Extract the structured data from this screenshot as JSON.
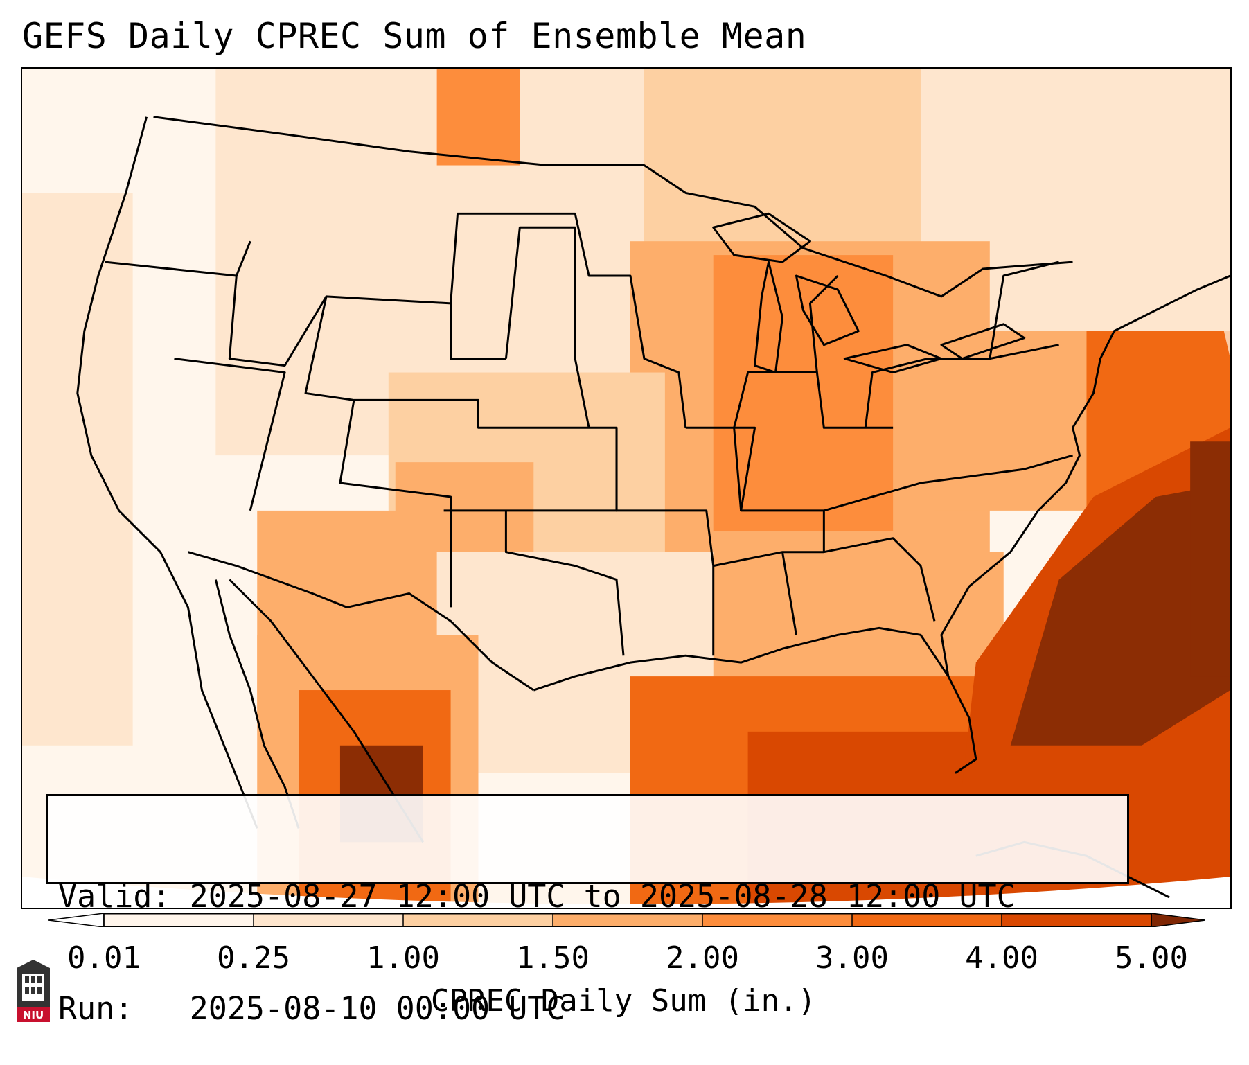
{
  "title": "GEFS Daily CPREC Sum of Ensemble Mean",
  "info": {
    "valid": "Valid: 2025-08-27 12:00 UTC to 2025-08-28 12:00 UTC",
    "run": "Run:   2025-08-10 00:00 UTC"
  },
  "colorbar": {
    "label": "CPREC Daily Sum (in.)",
    "ticks": [
      "0.01",
      "0.25",
      "1.00",
      "1.50",
      "2.00",
      "3.00",
      "4.00",
      "5.00"
    ],
    "levels": [
      0.01,
      0.25,
      1.0,
      1.5,
      2.0,
      3.0,
      4.0,
      5.0
    ],
    "colors": [
      "#fff5eb",
      "#fee6ce",
      "#fdd0a2",
      "#fdae6b",
      "#fd8d3c",
      "#f16913",
      "#d94801",
      "#8c2d04"
    ],
    "under_color": "#ffffff",
    "over_color": "#7f2704"
  },
  "logo": {
    "icon": "niu-logo-icon",
    "text": "NIU",
    "color": "#c8102e"
  }
}
